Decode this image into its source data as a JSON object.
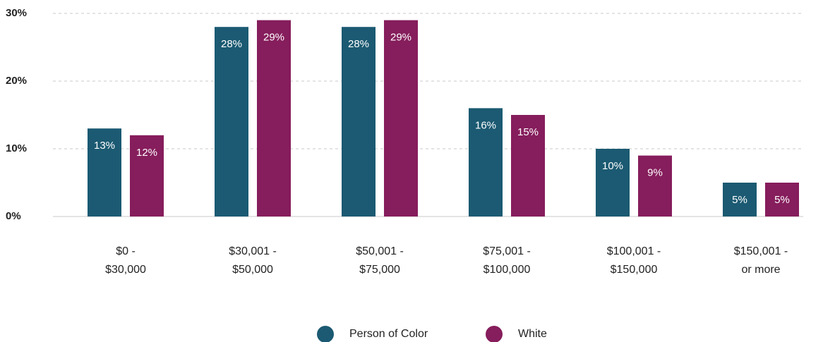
{
  "chart_data": {
    "type": "bar",
    "categories": [
      [
        "$0 -",
        "$30,000"
      ],
      [
        "$30,001 -",
        "$50,000"
      ],
      [
        "$50,001 -",
        "$75,000"
      ],
      [
        "$75,001 -",
        "$100,000"
      ],
      [
        "$100,001 -",
        "$150,000"
      ],
      [
        "$150,001 -",
        "or more"
      ]
    ],
    "series": [
      {
        "name": "Person of Color",
        "color": "#1b5a72",
        "values": [
          13,
          28,
          28,
          16,
          10,
          5
        ],
        "value_labels": [
          "13%",
          "28%",
          "28%",
          "16%",
          "10%",
          "5%"
        ]
      },
      {
        "name": "White",
        "color": "#861d5c",
        "values": [
          12,
          29,
          29,
          15,
          9,
          5
        ],
        "value_labels": [
          "12%",
          "29%",
          "29%",
          "15%",
          "9%",
          "5%"
        ]
      }
    ],
    "ylim": [
      0,
      30
    ],
    "yticks": [
      {
        "value": 0,
        "label": "0%"
      },
      {
        "value": 10,
        "label": "10%"
      },
      {
        "value": 20,
        "label": "20%"
      },
      {
        "value": 30,
        "label": "30%"
      }
    ],
    "grid": true,
    "legend": "bottom"
  }
}
